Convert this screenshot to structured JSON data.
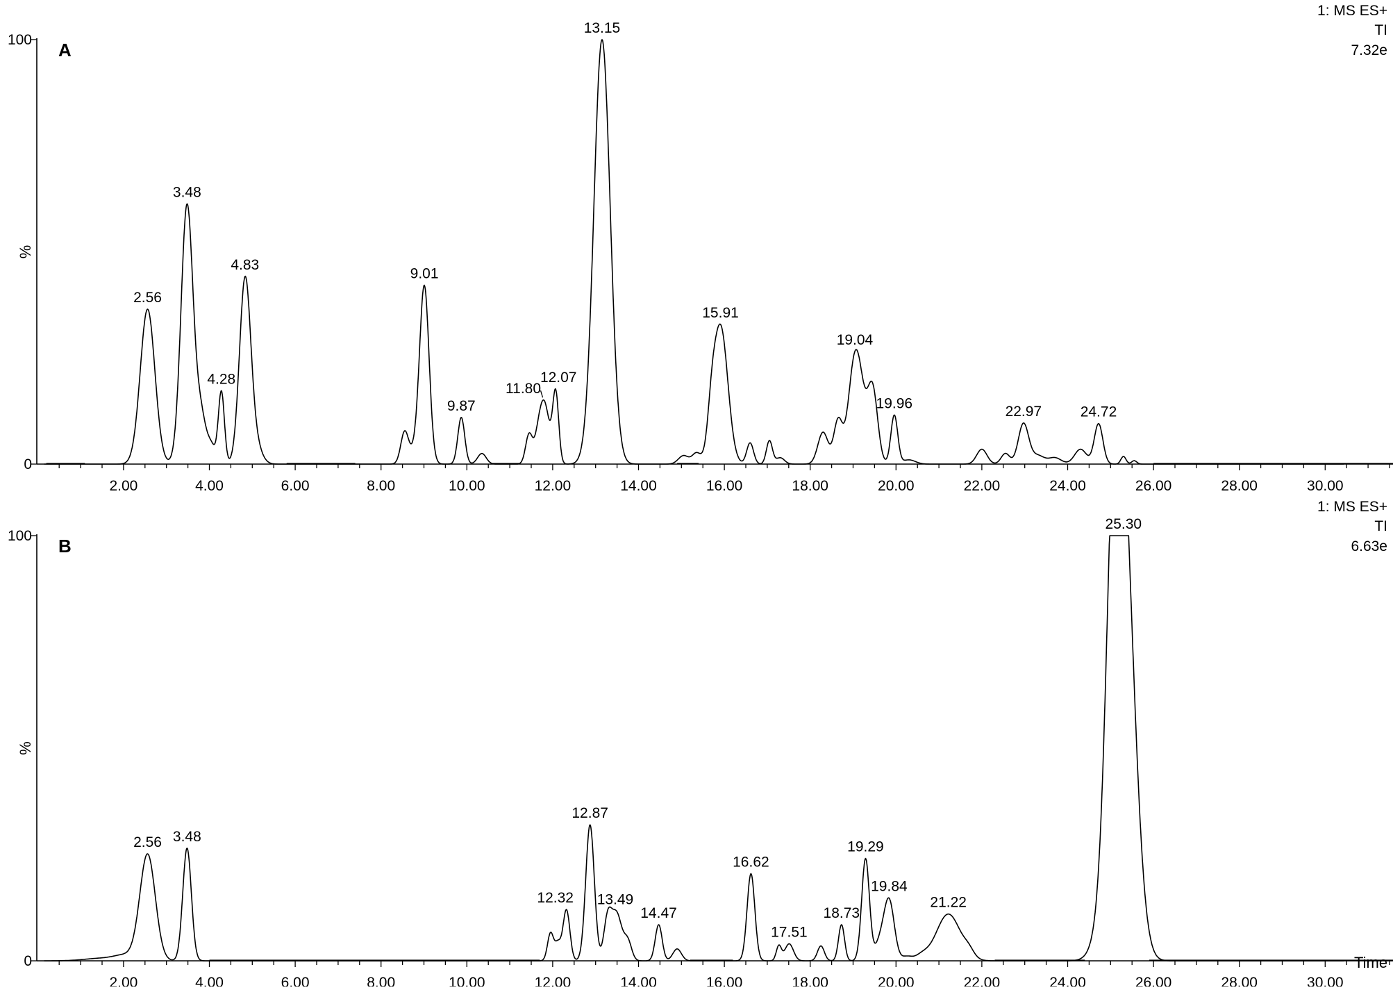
{
  "chart_data": [
    {
      "type": "line",
      "panel_label": "A",
      "header_lines": [
        "1: MS  ES+",
        "TI",
        "7.32e"
      ],
      "y_axis_top": "100",
      "y_axis_bottom": "0",
      "ylabel": "%",
      "xlabel": "",
      "xlim": [
        0,
        32.5
      ],
      "ylim": [
        0,
        100
      ],
      "x_tick_labels": [
        "2.00",
        "4.00",
        "6.00",
        "8.00",
        "10.00",
        "12.00",
        "14.00",
        "16.00",
        "18.00",
        "20.00",
        "22.00",
        "24.00",
        "26.00",
        "28.00",
        "30.00"
      ],
      "peaks": [
        {
          "rt": 2.56,
          "label": "2.56",
          "height": 36.5,
          "width": 0.17
        },
        {
          "rt": 3.48,
          "label": "3.48",
          "height": 61,
          "width": 0.14
        },
        {
          "rt": 4.28,
          "label": "4.28",
          "height": 17,
          "width": 0.07
        },
        {
          "rt": 4.83,
          "label": "4.83",
          "height": 42.5,
          "width": 0.13
        },
        {
          "rt": 9.01,
          "label": "9.01",
          "height": 41.5,
          "width": 0.11
        },
        {
          "rt": 9.87,
          "label": "9.87",
          "height": 11,
          "width": 0.08
        },
        {
          "rt": 11.8,
          "label": "11.80",
          "height": 14.5,
          "width": 0.12
        },
        {
          "rt": 12.07,
          "label": "12.07",
          "height": 16.5,
          "width": 0.07
        },
        {
          "rt": 13.15,
          "label": "13.15",
          "height": 100,
          "width": 0.19
        },
        {
          "rt": 15.91,
          "label": "15.91",
          "height": 32.5,
          "width": 0.17
        },
        {
          "rt": 19.04,
          "label": "19.04",
          "height": 24,
          "width": 0.15
        },
        {
          "rt": 19.96,
          "label": "19.96",
          "height": 11.5,
          "width": 0.08
        },
        {
          "rt": 22.97,
          "label": "22.97",
          "height": 9.5,
          "width": 0.12
        },
        {
          "rt": 24.72,
          "label": "24.72",
          "height": 9.5,
          "width": 0.1
        }
      ],
      "minor_peaks": [
        {
          "rt": 3.8,
          "height": 11,
          "width": 0.12
        },
        {
          "rt": 4.05,
          "height": 4,
          "width": 0.1
        },
        {
          "rt": 5.05,
          "height": 5,
          "width": 0.15
        },
        {
          "rt": 8.55,
          "height": 7.5,
          "width": 0.09
        },
        {
          "rt": 8.8,
          "height": 3,
          "width": 0.12
        },
        {
          "rt": 10.35,
          "height": 2.5,
          "width": 0.1
        },
        {
          "rt": 11.45,
          "height": 7,
          "width": 0.08
        },
        {
          "rt": 11.65,
          "height": 3,
          "width": 0.08
        },
        {
          "rt": 15.05,
          "height": 2,
          "width": 0.12
        },
        {
          "rt": 15.35,
          "height": 2.5,
          "width": 0.1
        },
        {
          "rt": 15.7,
          "height": 6.5,
          "width": 0.09
        },
        {
          "rt": 16.6,
          "height": 5,
          "width": 0.08
        },
        {
          "rt": 17.05,
          "height": 5.5,
          "width": 0.07
        },
        {
          "rt": 17.3,
          "height": 1.5,
          "width": 0.1
        },
        {
          "rt": 18.3,
          "height": 7.5,
          "width": 0.12
        },
        {
          "rt": 18.65,
          "height": 10,
          "width": 0.1
        },
        {
          "rt": 19.45,
          "height": 18,
          "width": 0.12
        },
        {
          "rt": 19.2,
          "height": 6,
          "width": 0.12
        },
        {
          "rt": 20.3,
          "height": 1,
          "width": 0.15
        },
        {
          "rt": 22.0,
          "height": 3.5,
          "width": 0.12
        },
        {
          "rt": 22.55,
          "height": 2.5,
          "width": 0.1
        },
        {
          "rt": 23.3,
          "height": 2,
          "width": 0.15
        },
        {
          "rt": 23.7,
          "height": 1.5,
          "width": 0.15
        },
        {
          "rt": 24.3,
          "height": 3.5,
          "width": 0.14
        },
        {
          "rt": 25.3,
          "height": 1.8,
          "width": 0.06
        },
        {
          "rt": 25.55,
          "height": 0.8,
          "width": 0.06
        }
      ],
      "baseline_runs": [
        [
          0.2,
          1.1
        ],
        [
          5.8,
          7.4
        ],
        [
          10.6,
          11.25
        ],
        [
          14.9,
          15.4
        ],
        [
          26.0,
          32.3
        ]
      ]
    },
    {
      "type": "line",
      "panel_label": "B",
      "header_lines": [
        "1: MS  ES+",
        "TI",
        "6.63e"
      ],
      "y_axis_top": "100",
      "y_axis_bottom": "0",
      "ylabel": "%",
      "xlabel": "Time",
      "xlim": [
        0,
        32.5
      ],
      "ylim": [
        0,
        100
      ],
      "x_tick_labels": [
        "2.00",
        "4.00",
        "6.00",
        "8.00",
        "10.00",
        "12.00",
        "14.00",
        "16.00",
        "18.00",
        "20.00",
        "22.00",
        "24.00",
        "26.00",
        "28.00",
        "30.00"
      ],
      "peaks": [
        {
          "rt": 2.56,
          "label": "2.56",
          "height": 25,
          "width": 0.18
        },
        {
          "rt": 3.48,
          "label": "3.48",
          "height": 26.5,
          "width": 0.1
        },
        {
          "rt": 12.32,
          "label": "12.32",
          "height": 12,
          "width": 0.08
        },
        {
          "rt": 12.87,
          "label": "12.87",
          "height": 32,
          "width": 0.1
        },
        {
          "rt": 13.49,
          "label": "13.49",
          "height": 11,
          "width": 0.12
        },
        {
          "rt": 14.47,
          "label": "14.47",
          "height": 8.5,
          "width": 0.08
        },
        {
          "rt": 16.62,
          "label": "16.62",
          "height": 20.5,
          "width": 0.09
        },
        {
          "rt": 17.51,
          "label": "17.51",
          "height": 4,
          "width": 0.1
        },
        {
          "rt": 18.73,
          "label": "18.73",
          "height": 8.5,
          "width": 0.07
        },
        {
          "rt": 19.29,
          "label": "19.29",
          "height": 24,
          "width": 0.09
        },
        {
          "rt": 19.84,
          "label": "19.84",
          "height": 14,
          "width": 0.12
        },
        {
          "rt": 21.22,
          "label": "21.22",
          "height": 11,
          "width": 0.28
        },
        {
          "rt": 25.3,
          "label": "25.30",
          "height": 100,
          "width": 0.26
        }
      ],
      "minor_peaks": [
        {
          "rt": 1.5,
          "height": 0.6,
          "width": 0.4
        },
        {
          "rt": 2.05,
          "height": 1.2,
          "width": 0.25
        },
        {
          "rt": 11.95,
          "height": 6.5,
          "width": 0.07
        },
        {
          "rt": 12.12,
          "height": 4,
          "width": 0.07
        },
        {
          "rt": 13.28,
          "height": 9.5,
          "width": 0.09
        },
        {
          "rt": 13.75,
          "height": 4.5,
          "width": 0.09
        },
        {
          "rt": 14.9,
          "height": 2.8,
          "width": 0.1
        },
        {
          "rt": 17.27,
          "height": 3.5,
          "width": 0.06
        },
        {
          "rt": 18.25,
          "height": 3.5,
          "width": 0.08
        },
        {
          "rt": 19.62,
          "height": 4,
          "width": 0.12
        },
        {
          "rt": 20.25,
          "height": 1,
          "width": 0.12
        },
        {
          "rt": 20.6,
          "height": 1.2,
          "width": 0.15
        },
        {
          "rt": 21.7,
          "height": 1.5,
          "width": 0.12
        },
        {
          "rt": 24.9,
          "height": 8,
          "width": 0.25
        },
        {
          "rt": 25.08,
          "height": 55,
          "width": 0.18
        }
      ],
      "baseline_runs": [
        [
          4.0,
          11.7
        ],
        [
          15.2,
          16.2
        ],
        [
          22.3,
          24.4
        ],
        [
          25.9,
          32.3
        ]
      ]
    }
  ]
}
